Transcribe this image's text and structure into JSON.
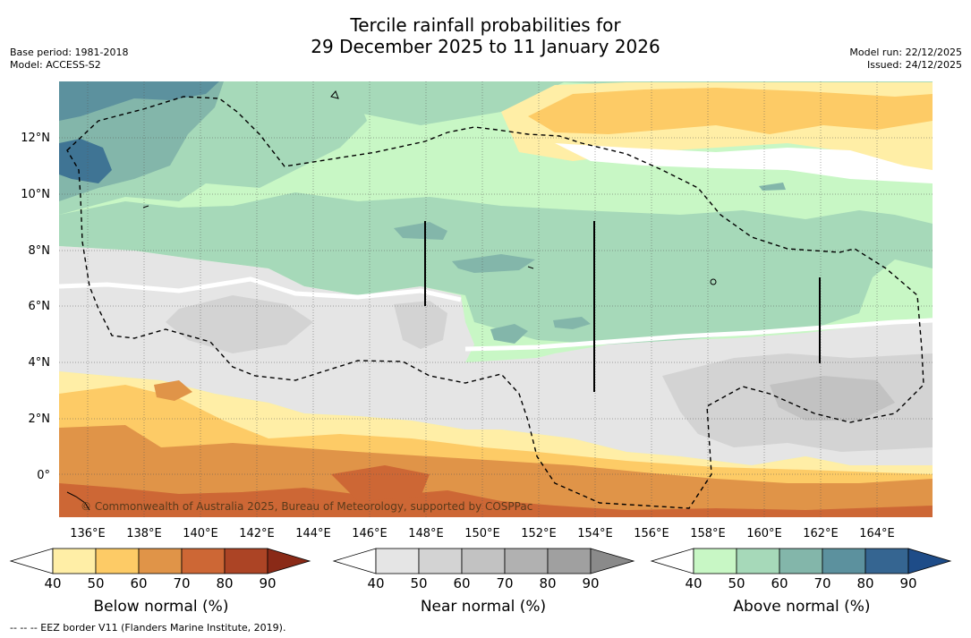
{
  "title": {
    "line1": "Tercile rainfall probabilities for",
    "line2": "29 December 2025 to 11 January 2026"
  },
  "left_meta": {
    "base_period": "Base period: 1981-2018",
    "model": "Model: ACCESS-S2"
  },
  "right_meta": {
    "model_run": "Model run: 22/12/2025",
    "issued": "Issued: 24/12/2025"
  },
  "axes": {
    "lat_labels": [
      "12°N",
      "10°N",
      "8°N",
      "6°N",
      "4°N",
      "2°N",
      "0°"
    ],
    "lon_labels": [
      "136°E",
      "138°E",
      "140°E",
      "142°E",
      "144°E",
      "146°E",
      "148°E",
      "150°E",
      "152°E",
      "154°E",
      "156°E",
      "158°E",
      "160°E",
      "162°E",
      "164°E"
    ]
  },
  "copyright": "© Commonwealth of Australia 2025, Bureau of Meteorology, supported by COSPPac",
  "colorbars": [
    {
      "label": "Below normal (%)",
      "ticks": [
        "40",
        "50",
        "60",
        "70",
        "80",
        "90"
      ],
      "colors": [
        "#ffeea6",
        "#fdcb66",
        "#e09448",
        "#cd6735",
        "#ac4425",
        "#8a2a17"
      ]
    },
    {
      "label": "Near normal (%)",
      "ticks": [
        "40",
        "50",
        "60",
        "70",
        "80",
        "90"
      ],
      "colors": [
        "#e5e5e5",
        "#d3d3d3",
        "#c2c2c2",
        "#b1b1b1",
        "#a0a0a0",
        "#8a8a8a"
      ]
    },
    {
      "label": "Above normal (%)",
      "ticks": [
        "40",
        "50",
        "60",
        "70",
        "80",
        "90"
      ],
      "colors": [
        "#c8f7c5",
        "#a6d9b9",
        "#83b6aa",
        "#5c919e",
        "#356591",
        "#1e4c88"
      ]
    }
  ],
  "footnote": "--  --  -- EEZ border V11 (Flanders Marine Institute, 2019)."
}
